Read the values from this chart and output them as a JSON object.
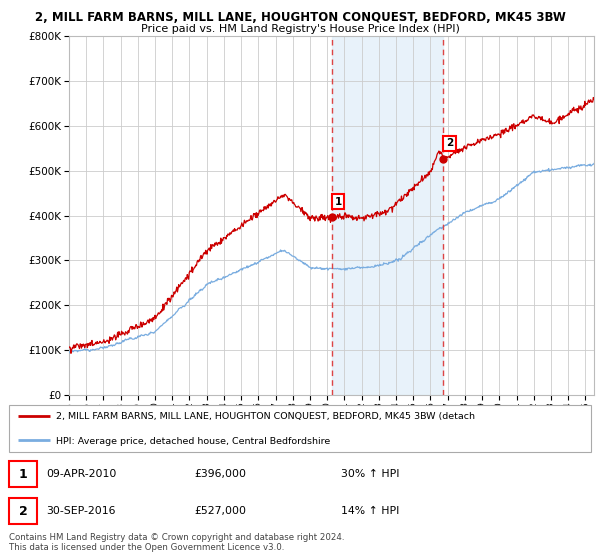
{
  "title": "2, MILL FARM BARNS, MILL LANE, HOUGHTON CONQUEST, BEDFORD, MK45 3BW",
  "subtitle": "Price paid vs. HM Land Registry's House Price Index (HPI)",
  "ylim": [
    0,
    800000
  ],
  "yticks": [
    0,
    100000,
    200000,
    300000,
    400000,
    500000,
    600000,
    700000,
    800000
  ],
  "sale1_date": 2010.27,
  "sale1_price": 396000,
  "sale1_label": "1",
  "sale1_text": "09-APR-2010",
  "sale1_amount": "£396,000",
  "sale1_hpi": "30% ↑ HPI",
  "sale2_date": 2016.75,
  "sale2_price": 527000,
  "sale2_label": "2",
  "sale2_text": "30-SEP-2016",
  "sale2_amount": "£527,000",
  "sale2_hpi": "14% ↑ HPI",
  "line1_color": "#cc0000",
  "line2_color": "#7aade0",
  "vline_color": "#dd4444",
  "shade_color": "#daeaf7",
  "legend_label1": "2, MILL FARM BARNS, MILL LANE, HOUGHTON CONQUEST, BEDFORD, MK45 3BW (detach",
  "legend_label2": "HPI: Average price, detached house, Central Bedfordshire",
  "footer1": "Contains HM Land Registry data © Crown copyright and database right 2024.",
  "footer2": "This data is licensed under the Open Government Licence v3.0.",
  "bg_color": "#ffffff",
  "grid_color": "#cccccc"
}
